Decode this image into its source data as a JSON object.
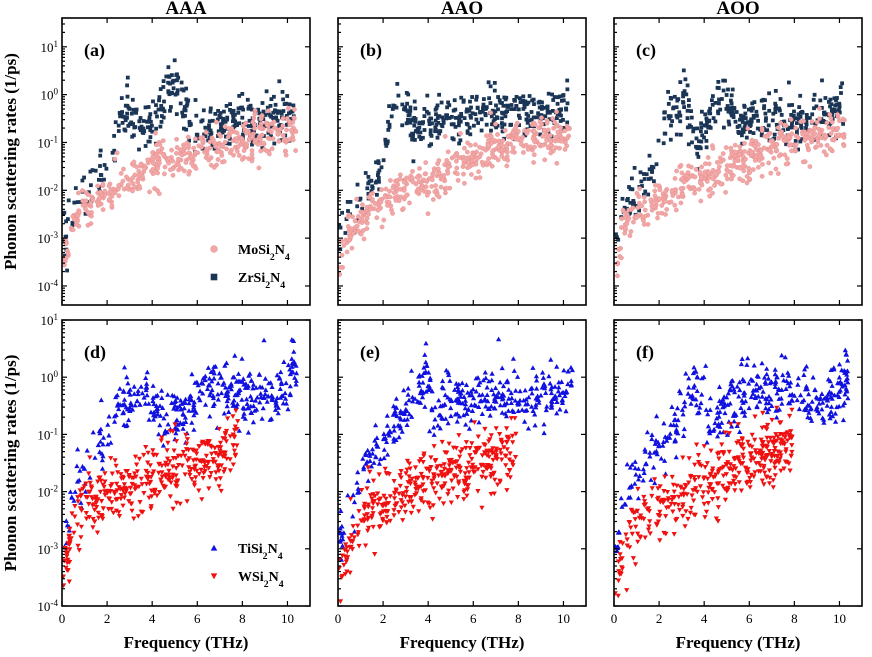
{
  "chart_data": {
    "type": "scatter",
    "title": "Phonon scattering rates",
    "column_titles": [
      "AAA",
      "AAO",
      "AOO"
    ],
    "xlabel": "Frequency (THz)",
    "ylabel": "Phonon scattering rates (1/ps)",
    "x_ticks": [
      0,
      2,
      4,
      6,
      8,
      10
    ],
    "xlim": [
      0,
      11
    ],
    "y_scale": "log",
    "rows": [
      {
        "ylim": [
          4e-05,
          40
        ],
        "y_ticks": [
          {
            "mant": "10",
            "exp": "1",
            "v": 10
          },
          {
            "mant": "10",
            "exp": "0",
            "v": 1
          },
          {
            "mant": "10",
            "exp": "-1",
            "v": 0.1
          },
          {
            "mant": "10",
            "exp": "-2",
            "v": 0.01
          },
          {
            "mant": "10",
            "exp": "-3",
            "v": 0.001
          },
          {
            "mant": "10",
            "exp": "-4",
            "v": 0.0001
          }
        ],
        "legend": [
          {
            "name": "MoSi",
            "sub1": "2",
            "mid": "N",
            "sub2": "4",
            "color": "#f2a7a7",
            "marker": "circle"
          },
          {
            "name": "ZrSi",
            "sub1": "2",
            "mid": "N",
            "sub2": "4",
            "color": "#1b3556",
            "marker": "square"
          }
        ],
        "panels": [
          {
            "label": "(a)",
            "series": [
              {
                "name": "ZrSi2N4",
                "color": "#1b3556",
                "marker": "square",
                "key": "ZrAAA"
              },
              {
                "name": "MoSi2N4",
                "color": "#f2a7a7",
                "marker": "circle",
                "key": "MoAAA"
              }
            ]
          },
          {
            "label": "(b)",
            "series": [
              {
                "name": "ZrSi2N4",
                "color": "#1b3556",
                "marker": "square",
                "key": "ZrAAO"
              },
              {
                "name": "MoSi2N4",
                "color": "#f2a7a7",
                "marker": "circle",
                "key": "MoAAO"
              }
            ]
          },
          {
            "label": "(c)",
            "series": [
              {
                "name": "ZrSi2N4",
                "color": "#1b3556",
                "marker": "square",
                "key": "ZrAOO"
              },
              {
                "name": "MoSi2N4",
                "color": "#f2a7a7",
                "marker": "circle",
                "key": "MoAOO"
              }
            ]
          }
        ]
      },
      {
        "ylim": [
          0.0001,
          10
        ],
        "y_ticks": [
          {
            "mant": "10",
            "exp": "1",
            "v": 10
          },
          {
            "mant": "10",
            "exp": "0",
            "v": 1
          },
          {
            "mant": "10",
            "exp": "-1",
            "v": 0.1
          },
          {
            "mant": "10",
            "exp": "-2",
            "v": 0.01
          },
          {
            "mant": "10",
            "exp": "-3",
            "v": 0.001
          },
          {
            "mant": "10",
            "exp": "-4",
            "v": 0.0001
          }
        ],
        "legend": [
          {
            "name": "TiSi",
            "sub1": "2",
            "mid": "N",
            "sub2": "4",
            "color": "#1010e0",
            "marker": "triangle-up"
          },
          {
            "name": "WSi",
            "sub1": "2",
            "mid": "N",
            "sub2": "4",
            "color": "#f01010",
            "marker": "triangle-down"
          }
        ],
        "panels": [
          {
            "label": "(d)",
            "series": [
              {
                "name": "TiSi2N4",
                "color": "#1010e0",
                "marker": "triangle-up",
                "key": "TiAAA"
              },
              {
                "name": "WSi2N4",
                "color": "#f01010",
                "marker": "triangle-down",
                "key": "WAAA"
              }
            ]
          },
          {
            "label": "(e)",
            "series": [
              {
                "name": "TiSi2N4",
                "color": "#1010e0",
                "marker": "triangle-up",
                "key": "TiAAO"
              },
              {
                "name": "WSi2N4",
                "color": "#f01010",
                "marker": "triangle-down",
                "key": "WAAO"
              }
            ]
          },
          {
            "label": "(f)",
            "series": [
              {
                "name": "TiSi2N4",
                "color": "#1010e0",
                "marker": "triangle-up",
                "key": "TiAOO"
              },
              {
                "name": "WSi2N4",
                "color": "#f01010",
                "marker": "triangle-down",
                "key": "WAOO"
              }
            ]
          }
        ]
      }
    ],
    "series_data": {
      "MoAAA": {
        "x": [
          0.1,
          0.3,
          0.5,
          0.8,
          1.0,
          1.3,
          1.6,
          2.0,
          2.4,
          2.8,
          3.2,
          3.6,
          4.0,
          4.5,
          5.0,
          5.5,
          6.0,
          6.5,
          7.0,
          7.5,
          8.0,
          8.5,
          9.0,
          9.5,
          10.0,
          10.4
        ],
        "y": [
          0.0004,
          0.0012,
          0.002,
          0.003,
          0.004,
          0.005,
          0.007,
          0.009,
          0.012,
          0.015,
          0.018,
          0.022,
          0.028,
          0.035,
          0.045,
          0.055,
          0.065,
          0.08,
          0.09,
          0.1,
          0.11,
          0.12,
          0.13,
          0.14,
          0.15,
          0.2
        ]
      },
      "ZrAAA": {
        "x": [
          0.1,
          0.3,
          0.6,
          1.0,
          1.4,
          1.8,
          2.2,
          2.5,
          2.8,
          3.0,
          3.4,
          3.8,
          4.2,
          4.6,
          5.0,
          5.3,
          5.7,
          6.2,
          6.6,
          7.0,
          7.5,
          8.0,
          8.5,
          9.0,
          9.5,
          10.0,
          10.3
        ],
        "y": [
          0.001,
          0.002,
          0.004,
          0.008,
          0.012,
          0.02,
          0.03,
          0.3,
          0.3,
          0.4,
          0.15,
          0.2,
          0.4,
          1.0,
          1.5,
          0.8,
          0.4,
          0.15,
          0.2,
          0.3,
          0.35,
          0.3,
          0.25,
          0.3,
          0.35,
          0.4,
          0.4
        ]
      },
      "MoAAO": {
        "x": [
          0.1,
          0.4,
          0.8,
          1.2,
          1.6,
          2.0,
          2.5,
          3.0,
          3.5,
          4.0,
          4.5,
          5.0,
          5.5,
          6.0,
          6.5,
          7.0,
          7.5,
          8.0,
          8.5,
          9.0,
          9.5,
          10.0,
          10.3
        ],
        "y": [
          0.0003,
          0.001,
          0.002,
          0.003,
          0.004,
          0.006,
          0.008,
          0.01,
          0.013,
          0.016,
          0.02,
          0.03,
          0.04,
          0.05,
          0.06,
          0.08,
          0.1,
          0.12,
          0.1,
          0.12,
          0.12,
          0.15,
          0.2
        ]
      },
      "ZrAAO": {
        "x": [
          0.1,
          0.4,
          0.8,
          1.2,
          1.6,
          2.0,
          2.3,
          2.6,
          2.9,
          3.2,
          3.6,
          4.0,
          4.5,
          5.0,
          5.5,
          6.0,
          6.5,
          7.0,
          7.5,
          8.0,
          8.5,
          9.0,
          9.5,
          10.0,
          10.2
        ],
        "y": [
          0.001,
          0.003,
          0.005,
          0.01,
          0.015,
          0.03,
          0.4,
          0.6,
          0.8,
          0.3,
          0.2,
          0.25,
          0.3,
          0.3,
          0.3,
          0.35,
          0.4,
          0.45,
          0.5,
          0.4,
          0.35,
          0.4,
          0.45,
          0.5,
          0.5
        ]
      },
      "MoAOO": {
        "x": [
          0.1,
          0.4,
          0.8,
          1.2,
          1.6,
          2.0,
          2.5,
          3.0,
          3.5,
          4.0,
          4.5,
          5.0,
          5.5,
          6.0,
          6.5,
          7.0,
          7.5,
          8.0,
          8.5,
          9.0,
          9.5,
          10.0,
          10.3
        ],
        "y": [
          0.0005,
          0.0015,
          0.003,
          0.004,
          0.005,
          0.007,
          0.009,
          0.012,
          0.015,
          0.018,
          0.022,
          0.03,
          0.04,
          0.05,
          0.065,
          0.08,
          0.09,
          0.1,
          0.11,
          0.12,
          0.13,
          0.14,
          0.18
        ]
      },
      "ZrAOO": {
        "x": [
          0.1,
          0.4,
          0.8,
          1.2,
          1.6,
          2.0,
          2.4,
          2.8,
          3.2,
          3.6,
          4.0,
          4.4,
          4.8,
          5.2,
          5.6,
          6.0,
          6.5,
          7.0,
          7.5,
          8.0,
          8.5,
          9.0,
          9.5,
          10.0,
          10.2
        ],
        "y": [
          0.001,
          0.003,
          0.006,
          0.01,
          0.02,
          0.03,
          0.5,
          0.6,
          0.7,
          0.06,
          0.15,
          0.4,
          0.9,
          0.5,
          0.3,
          0.25,
          0.3,
          0.3,
          0.3,
          0.35,
          0.3,
          0.35,
          0.4,
          0.45,
          0.5
        ]
      },
      "TiAAA": {
        "x": [
          0.1,
          0.3,
          0.6,
          1.0,
          1.4,
          1.8,
          2.2,
          2.6,
          3.0,
          3.4,
          3.8,
          4.0,
          4.4,
          4.8,
          5.2,
          5.6,
          6.0,
          6.4,
          6.8,
          7.2,
          7.6,
          8.0,
          8.5,
          9.0,
          9.5,
          10.0,
          10.4
        ],
        "y": [
          0.001,
          0.004,
          0.01,
          0.03,
          0.05,
          0.08,
          0.15,
          0.3,
          0.4,
          0.5,
          0.6,
          0.3,
          0.2,
          0.2,
          0.25,
          0.3,
          0.4,
          0.5,
          0.6,
          0.6,
          0.6,
          0.5,
          0.4,
          0.5,
          0.5,
          0.6,
          1.5
        ]
      },
      "WAAA": {
        "x": [
          0.1,
          0.3,
          0.6,
          1.0,
          1.4,
          1.8,
          2.2,
          2.6,
          3.0,
          3.4,
          3.8,
          4.2,
          4.6,
          5.0,
          5.4,
          5.8,
          6.2,
          6.6,
          7.0,
          7.4,
          7.8
        ],
        "y": [
          0.0003,
          0.001,
          0.003,
          0.005,
          0.007,
          0.008,
          0.009,
          0.01,
          0.012,
          0.013,
          0.015,
          0.02,
          0.02,
          0.03,
          0.03,
          0.03,
          0.03,
          0.04,
          0.04,
          0.05,
          0.1
        ]
      },
      "TiAAO": {
        "x": [
          0.1,
          0.4,
          0.8,
          1.2,
          1.6,
          2.0,
          2.4,
          2.8,
          3.2,
          3.6,
          3.9,
          4.2,
          4.6,
          5.0,
          5.4,
          5.8,
          6.2,
          6.6,
          7.0,
          7.5,
          8.0,
          8.5,
          9.0,
          9.5,
          10.0,
          10.4
        ],
        "y": [
          0.001,
          0.005,
          0.01,
          0.03,
          0.05,
          0.08,
          0.12,
          0.2,
          0.3,
          0.5,
          1.0,
          0.2,
          0.3,
          0.4,
          0.4,
          0.4,
          0.5,
          0.5,
          0.5,
          0.6,
          0.4,
          0.4,
          0.4,
          0.5,
          0.6,
          1.2
        ]
      },
      "WAAO": {
        "x": [
          0.1,
          0.4,
          0.8,
          1.2,
          1.6,
          2.0,
          2.4,
          2.8,
          3.2,
          3.6,
          4.0,
          4.4,
          4.8,
          5.2,
          5.6,
          6.0,
          6.4,
          6.8,
          7.2,
          7.6,
          7.9
        ],
        "y": [
          0.0003,
          0.001,
          0.002,
          0.004,
          0.006,
          0.007,
          0.008,
          0.01,
          0.012,
          0.013,
          0.015,
          0.015,
          0.017,
          0.02,
          0.025,
          0.03,
          0.03,
          0.04,
          0.04,
          0.05,
          0.1
        ]
      },
      "TiAOO": {
        "x": [
          0.1,
          0.4,
          0.8,
          1.2,
          1.6,
          2.0,
          2.4,
          2.8,
          3.2,
          3.6,
          3.9,
          4.2,
          4.6,
          5.0,
          5.4,
          5.8,
          6.2,
          6.6,
          7.0,
          7.5,
          8.0,
          8.5,
          9.0,
          9.5,
          10.0,
          10.4
        ],
        "y": [
          0.001,
          0.004,
          0.01,
          0.02,
          0.04,
          0.06,
          0.1,
          0.15,
          0.4,
          0.6,
          0.8,
          0.15,
          0.2,
          0.3,
          0.4,
          0.5,
          0.5,
          0.6,
          0.6,
          0.6,
          0.5,
          0.4,
          0.4,
          0.5,
          0.6,
          1.5
        ]
      },
      "WAOO": {
        "x": [
          0.1,
          0.4,
          0.8,
          1.2,
          1.6,
          2.0,
          2.4,
          2.8,
          3.2,
          3.6,
          4.0,
          4.4,
          4.8,
          5.2,
          5.6,
          6.0,
          6.4,
          6.8,
          7.2,
          7.6,
          7.9
        ],
        "y": [
          0.0003,
          0.001,
          0.002,
          0.004,
          0.005,
          0.006,
          0.007,
          0.008,
          0.01,
          0.012,
          0.014,
          0.016,
          0.02,
          0.025,
          0.03,
          0.035,
          0.04,
          0.04,
          0.05,
          0.05,
          0.08
        ]
      }
    }
  }
}
